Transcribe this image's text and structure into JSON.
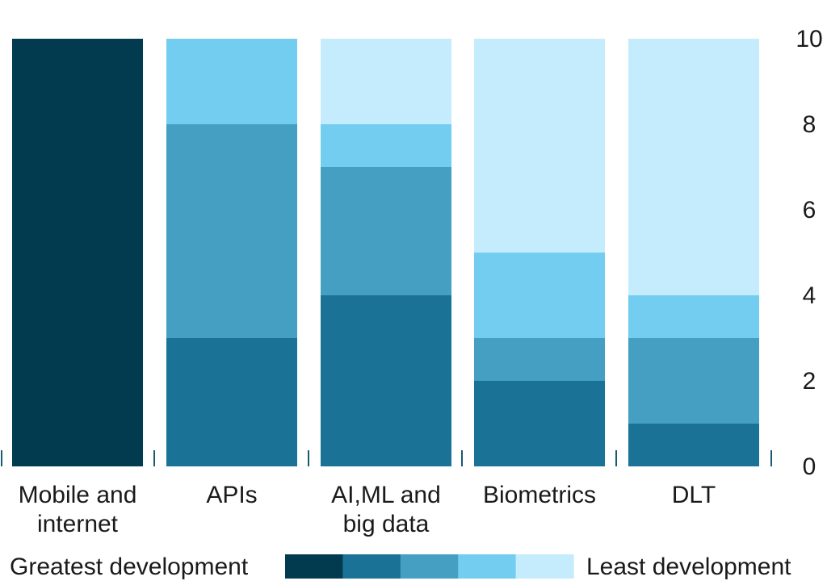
{
  "chart_data": {
    "type": "bar",
    "stacked": true,
    "categories": [
      "Mobile and internet",
      "APIs",
      "AI,ML and big data",
      "Biometrics",
      "DLT"
    ],
    "category_lines": [
      [
        "Mobile and",
        "internet"
      ],
      [
        "APIs"
      ],
      [
        "AI,ML and",
        "big data"
      ],
      [
        "Biometrics"
      ],
      [
        "DLT"
      ]
    ],
    "series": [
      {
        "level": 1,
        "color": "#023a4f",
        "values": [
          10,
          0,
          0,
          0,
          0
        ]
      },
      {
        "level": 2,
        "color": "#1a7396",
        "values": [
          0,
          3,
          4,
          2,
          1
        ]
      },
      {
        "level": 3,
        "color": "#449fc3",
        "values": [
          0,
          5,
          3,
          1,
          2
        ]
      },
      {
        "level": 4,
        "color": "#72cdf0",
        "values": [
          0,
          2,
          1,
          2,
          1
        ]
      },
      {
        "level": 5,
        "color": "#c5ecfc",
        "values": [
          0,
          0,
          2,
          5,
          6
        ]
      }
    ],
    "y_axis": {
      "side": "right",
      "ylim": [
        0,
        10
      ],
      "ticks": [
        0,
        2,
        4,
        6,
        8,
        10
      ]
    },
    "grid": false,
    "legend": {
      "placement": "bottom",
      "left_label": "Greatest development",
      "right_label": "Least development",
      "colors": [
        "#023a4f",
        "#1a7396",
        "#449fc3",
        "#72cdf0",
        "#c5ecfc"
      ]
    }
  }
}
